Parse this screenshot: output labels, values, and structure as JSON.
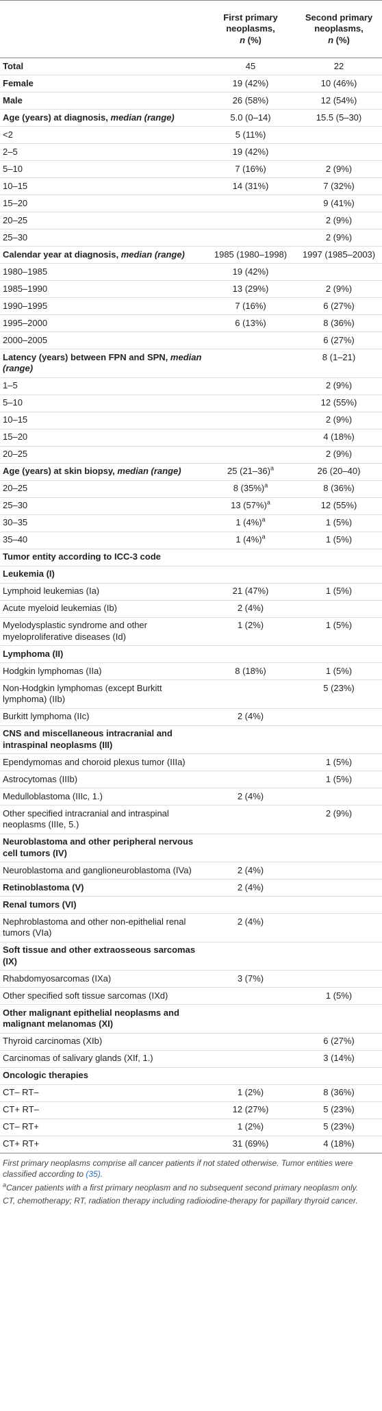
{
  "table": {
    "header": [
      {
        "pre": "First primary neoplasms,",
        "em": "n",
        "post": "(%)"
      },
      {
        "pre": "Second primary neoplasms,",
        "em": "n",
        "post": "(%)"
      }
    ],
    "rows": [
      {
        "label": "Total",
        "first": "45",
        "second": "22",
        "bold": true
      },
      {
        "label": "Female",
        "first": "19 (42%)",
        "second": "10 (46%)",
        "bold": true
      },
      {
        "label": "Male",
        "first": "26 (58%)",
        "second": "12 (54%)",
        "bold": true
      },
      {
        "label": "Age (years) at diagnosis,",
        "label_em": "median (range)",
        "first": "5.0 (0–14)",
        "second": "15.5 (5–30)",
        "bold": true
      },
      {
        "label": "<2",
        "first": "5 (11%)"
      },
      {
        "label": "2–5",
        "first": "19 (42%)"
      },
      {
        "label": "5–10",
        "first": "7 (16%)",
        "second": "2 (9%)"
      },
      {
        "label": "10–15",
        "first": "14 (31%)",
        "second": "7 (32%)"
      },
      {
        "label": "15–20",
        "second": "9 (41%)"
      },
      {
        "label": "20–25",
        "second": "2 (9%)"
      },
      {
        "label": "25–30",
        "second": "2 (9%)"
      },
      {
        "label": "Calendar year at diagnosis,",
        "label_em": "median (range)",
        "first": "1985 (1980–1998)",
        "second": "1997 (1985–2003)",
        "bold": true
      },
      {
        "label": "1980–1985",
        "first": "19 (42%)"
      },
      {
        "label": "1985–1990",
        "first": "13 (29%)",
        "second": "2 (9%)"
      },
      {
        "label": "1990–1995",
        "first": "7 (16%)",
        "second": "6 (27%)"
      },
      {
        "label": "1995–2000",
        "first": "6 (13%)",
        "second": "8 (36%)"
      },
      {
        "label": "2000–2005",
        "second": "6 (27%)"
      },
      {
        "label": "Latency (years) between FPN and SPN,",
        "label_em": "median (range)",
        "second": "8 (1–21)",
        "bold": true
      },
      {
        "label": "1–5",
        "second": "2 (9%)"
      },
      {
        "label": "5–10",
        "second": "12 (55%)"
      },
      {
        "label": "10–15",
        "second": "2 (9%)"
      },
      {
        "label": "15–20",
        "second": "4 (18%)"
      },
      {
        "label": "20–25",
        "second": "2 (9%)"
      },
      {
        "label": "Age (years) at skin biopsy,",
        "label_em": "median (range)",
        "first": "25 (21–36)",
        "first_sup": "a",
        "second": "26 (20–40)",
        "bold": true
      },
      {
        "label": "20–25",
        "first": "8 (35%)",
        "first_sup": "a",
        "second": "8 (36%)"
      },
      {
        "label": "25–30",
        "first": "13 (57%)",
        "first_sup": "a",
        "second": "12 (55%)"
      },
      {
        "label": "30–35",
        "first": "1 (4%)",
        "first_sup": "a",
        "second": "1 (5%)"
      },
      {
        "label": "35–40",
        "first": "1 (4%)",
        "first_sup": "a",
        "second": "1 (5%)"
      },
      {
        "label": "Tumor entity according to ICC-3 code",
        "bold": true
      },
      {
        "label": "Leukemia (I)",
        "bold": true
      },
      {
        "label": "Lymphoid leukemias (Ia)",
        "first": "21 (47%)",
        "second": "1 (5%)"
      },
      {
        "label": "Acute myeloid leukemias (Ib)",
        "first": "2 (4%)"
      },
      {
        "label": "Myelodysplastic syndrome and other myeloproliferative diseases (Id)",
        "first": "1 (2%)",
        "second": "1 (5%)"
      },
      {
        "label": "Lymphoma (II)",
        "bold": true
      },
      {
        "label": "Hodgkin lymphomas (IIa)",
        "first": "8 (18%)",
        "second": "1 (5%)"
      },
      {
        "label": "Non-Hodgkin lymphomas (except Burkitt lymphoma) (IIb)",
        "second": "5 (23%)"
      },
      {
        "label": "Burkitt lymphoma (IIc)",
        "first": "2 (4%)"
      },
      {
        "label": "CNS and miscellaneous intracranial and intraspinal neoplasms (III)",
        "bold": true
      },
      {
        "label": "Ependymomas and choroid plexus tumor (IIIa)",
        "second": "1 (5%)"
      },
      {
        "label": "Astrocytomas (IIIb)",
        "second": "1 (5%)"
      },
      {
        "label": "Medulloblastoma (IIIc, 1.)",
        "first": "2 (4%)"
      },
      {
        "label": "Other specified intracranial and intraspinal neoplasms (IIIe, 5.)",
        "second": "2 (9%)"
      },
      {
        "label": "Neuroblastoma and other peripheral nervous cell tumors (IV)",
        "bold": true
      },
      {
        "label": "Neuroblastoma and ganglioneuroblastoma (IVa)",
        "first": "2 (4%)"
      },
      {
        "label": "Retinoblastoma (V)",
        "first": "2 (4%)",
        "bold": true
      },
      {
        "label": "Renal tumors (VI)",
        "bold": true
      },
      {
        "label": "Nephroblastoma and other non-epithelial renal tumors (VIa)",
        "first": "2 (4%)"
      },
      {
        "label": "Soft tissue and other extraosseous sarcomas (IX)",
        "bold": true
      },
      {
        "label": "Rhabdomyosarcomas (IXa)",
        "first": "3 (7%)"
      },
      {
        "label": "Other specified soft tissue sarcomas (IXd)",
        "second": "1 (5%)"
      },
      {
        "label": "Other malignant epithelial neoplasms and malignant melanomas (XI)",
        "bold": true
      },
      {
        "label": "Thyroid carcinomas (XIb)",
        "second": "6 (27%)"
      },
      {
        "label": "Carcinomas of salivary glands (XIf, 1.)",
        "second": "3 (14%)"
      },
      {
        "label": "Oncologic therapies",
        "bold": true
      },
      {
        "label": "CT– RT–",
        "first": "1 (2%)",
        "second": "8 (36%)"
      },
      {
        "label": "CT+ RT–",
        "first": "12 (27%)",
        "second": "5 (23%)"
      },
      {
        "label": "CT– RT+",
        "first": "1 (2%)",
        "second": "5 (23%)"
      },
      {
        "label": "CT+ RT+",
        "first": "31 (69%)",
        "second": "4 (18%)"
      }
    ]
  },
  "footnotes": {
    "note1": {
      "text": "First primary neoplasms comprise all cancer patients if not stated otherwise. Tumor entities were classified according to",
      "link": "(35)",
      "end": "."
    },
    "note2": {
      "sup": "a",
      "text": "Cancer patients with a first primary neoplasm and no subsequent second primary neoplasm only."
    },
    "note3": {
      "text": "CT, chemotherapy; RT, radiation therapy including radioiodine-therapy for papillary thyroid cancer."
    }
  }
}
